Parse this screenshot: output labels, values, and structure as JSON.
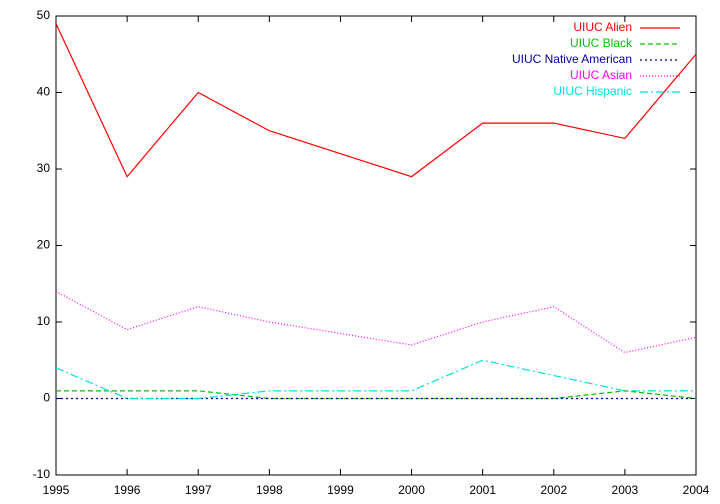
{
  "chart_data": {
    "type": "line",
    "x": [
      1995,
      1996,
      1997,
      1998,
      2000,
      2001,
      2002,
      2003,
      2004
    ],
    "series": [
      {
        "name": "UIUC Alien",
        "color": "#ff0000",
        "dash": "none",
        "values": [
          49,
          29,
          40,
          35,
          29,
          36,
          36,
          34,
          45
        ]
      },
      {
        "name": "UIUC Black",
        "color": "#00c000",
        "dash": "5,3",
        "values": [
          1,
          1,
          1,
          0,
          0,
          0,
          0,
          1,
          0
        ]
      },
      {
        "name": "UIUC Native American",
        "color": "#0000a0",
        "dash": "2,3",
        "values": [
          0,
          0,
          0,
          0,
          0,
          0,
          0,
          0,
          0
        ]
      },
      {
        "name": "UIUC Asian",
        "color": "#ff00ff",
        "dash": "1,2",
        "values": [
          14,
          9,
          12,
          10,
          7,
          10,
          12,
          6,
          8
        ]
      },
      {
        "name": "UIUC Hispanic",
        "color": "#00e0e0",
        "dash": "8,3,2,3",
        "values": [
          4,
          0,
          0,
          1,
          1,
          5,
          3,
          1,
          1
        ]
      }
    ],
    "xlim": [
      1995,
      2004
    ],
    "xticks": [
      1995,
      1996,
      1997,
      1998,
      1999,
      2000,
      2001,
      2002,
      2003,
      2004
    ],
    "ylim": [
      -10,
      50
    ],
    "yticks": [
      -10,
      0,
      10,
      20,
      30,
      40,
      50
    ],
    "legend": "top-right",
    "grid": false
  }
}
